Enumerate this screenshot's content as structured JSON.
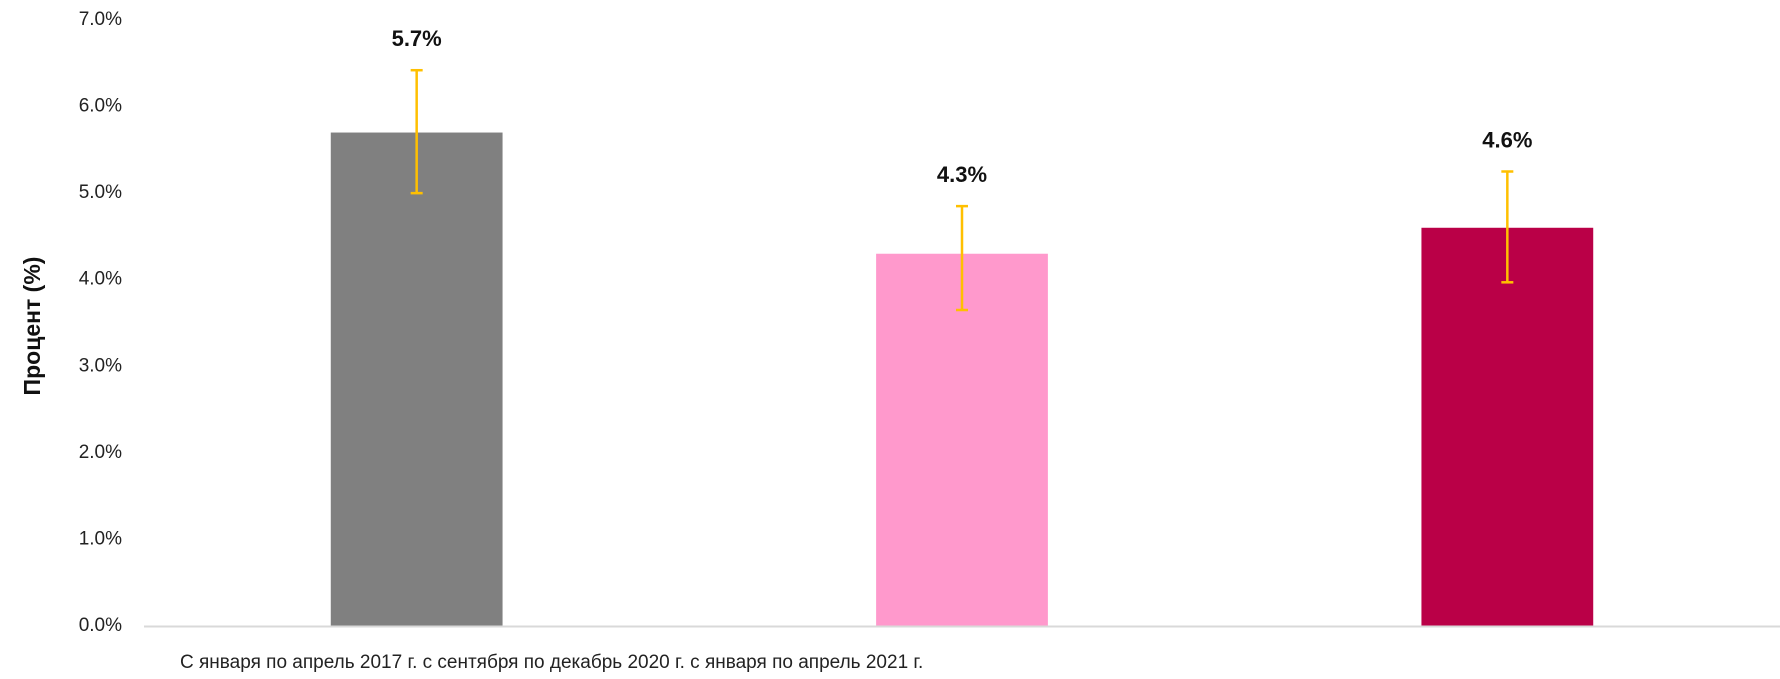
{
  "chart_data": {
    "type": "bar",
    "categories": [
      "С января по апрель 2017 г.",
      "с сентября по декабрь 2020 г.",
      "с января по апрель 2021 г."
    ],
    "values": [
      5.7,
      4.3,
      4.6
    ],
    "error_bars": [
      {
        "low": 5.0,
        "high": 6.42
      },
      {
        "low": 3.65,
        "high": 4.85
      },
      {
        "low": 3.97,
        "high": 5.25
      }
    ],
    "data_labels": [
      "5.7%",
      "4.3%",
      "4.6%"
    ],
    "y_tick_labels": [
      "0.0%",
      "1.0%",
      "2.0%",
      "3.0%",
      "4.0%",
      "5.0%",
      "6.0%",
      "7.0%"
    ],
    "ylabel": "Процент (%)",
    "xlabel": "",
    "title": "",
    "ylim": [
      0,
      7
    ],
    "grid": false,
    "legend": "none",
    "bar_colors": [
      "#808080",
      "#FF99CC",
      "#BA0047"
    ],
    "error_bar_color": "#FFC000",
    "axis_color": "#D9D9D9",
    "category_axis_text": "С января по апрель 2017 г. с сентября по декабрь 2020 г. с января по апрель 2021 г."
  }
}
